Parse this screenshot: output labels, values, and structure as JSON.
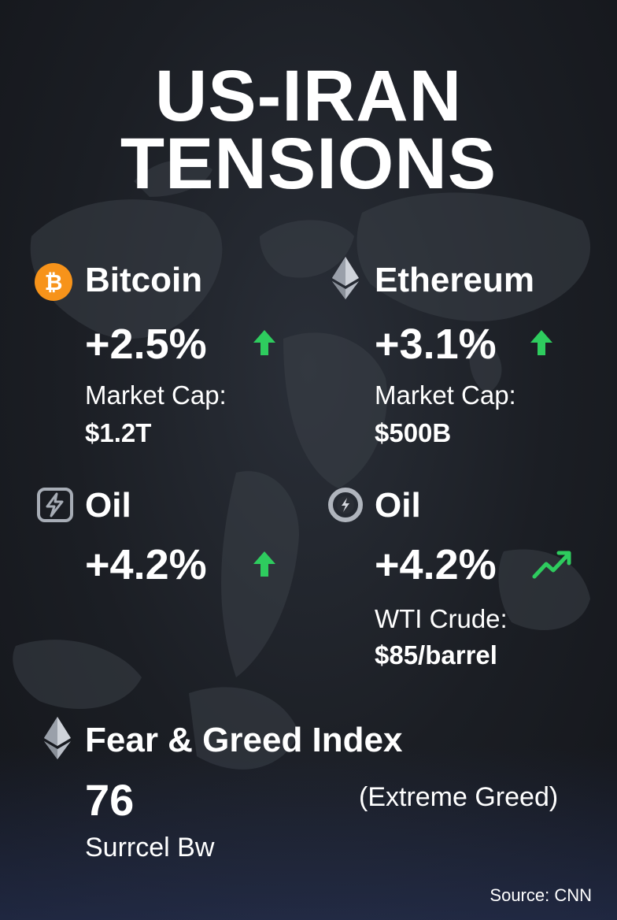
{
  "title": {
    "line1": "US-IRAN",
    "line2": "TENSIONS"
  },
  "assets": [
    {
      "name": "Bitcoin",
      "change": "+2.5%",
      "label": "Market Cap:",
      "value": "$1.2T",
      "icon": "bitcoin-icon",
      "trend": "arrow-up"
    },
    {
      "name": "Ethereum",
      "change": "+3.1%",
      "label": "Market Cap:",
      "value": "$500B",
      "icon": "ethereum-icon",
      "trend": "arrow-up"
    },
    {
      "name": "Oil",
      "change": "+4.2%",
      "icon": "oil-can-icon",
      "trend": "arrow-up"
    },
    {
      "name": "Oil",
      "change": "+4.2%",
      "label": "WTI Crude:",
      "value": "$85/barrel",
      "icon": "power-icon",
      "trend": "trending-up"
    }
  ],
  "fear_greed": {
    "title": "Fear & Greed Index",
    "value": "76",
    "state": "(Extreme Greed)",
    "subtext": "Surrcel Bw",
    "icon": "ethereum-icon"
  },
  "source": "Source: CNN",
  "colors": {
    "up": "#2ecc5e",
    "bitcoin": "#f7931a",
    "background": "#1b1e24"
  }
}
